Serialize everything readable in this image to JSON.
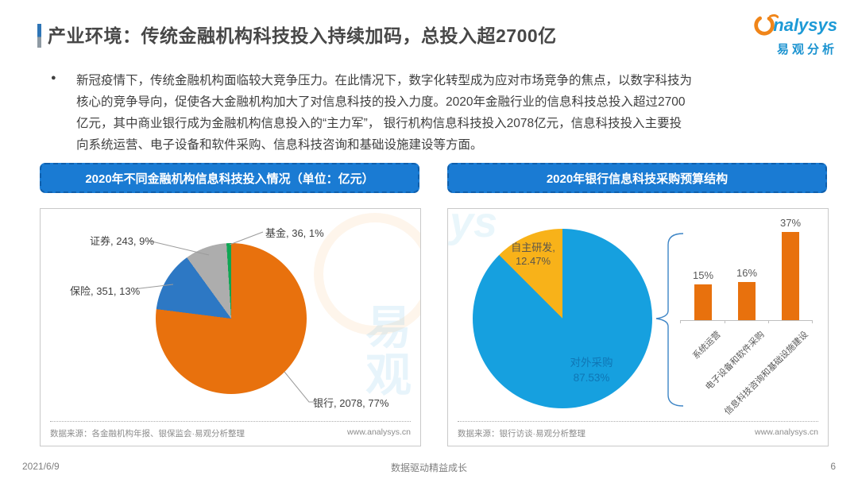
{
  "page": {
    "title": "产业环境：传统金融机构科技投入持续加码，总投入超2700亿",
    "bullet": "●",
    "bullet_lines": [
      "新冠疫情下，传统金融机构面临较大竞争压力。在此情况下，数字化转型成为应对市场竞争的焦点，以数字科技为",
      "核心的竞争导向，促使各大金融机构加大了对信息科技的投入力度。2020年金融行业的信息科技总投入超过2700",
      "亿元，其中商业银行成为金融机构信息投入的“主力军”， 银行机构信息科技投入2078亿元，信息科技投入主要投",
      "向系统运营、电子设备和软件采购、信息科技咨询和基础设施建设等方面。"
    ],
    "logo": {
      "brand": "nalysys",
      "brand_cn": "易观分析"
    },
    "watermark": {
      "left_cn": "易观",
      "right_script": "ys"
    },
    "footer": {
      "date": "2021/6/9",
      "slogan": "数据驱动精益成长",
      "page_number": "6"
    }
  },
  "panels": {
    "left": {
      "header": "2020年不同金融机构信息科技投入情况（单位：亿元）",
      "source": "数据来源：各金融机构年报、银保监会·易观分析整理",
      "site": "www.analysys.cn"
    },
    "right": {
      "header": "2020年银行信息科技采购预算结构",
      "source": "数据来源：银行访谈·易观分析整理",
      "site": "www.analysys.cn"
    }
  },
  "chart_data": [
    {
      "type": "pie",
      "title": "2020年不同金融机构信息科技投入情况（单位：亿元）",
      "unit": "亿元",
      "labels": [
        "银行",
        "保险",
        "证券",
        "基金"
      ],
      "values": [
        2078,
        351,
        243,
        36
      ],
      "percents": [
        77,
        13,
        9,
        1
      ],
      "colors": [
        "#e8710d",
        "#2d78c4",
        "#adadad",
        "#0ea653"
      ],
      "display_labels": [
        "银行, 2078, 77%",
        "保险, 351, 13%",
        "证券, 243, 9%",
        "基金, 36, 1%"
      ],
      "start_angle": "12点钟方向顺时针",
      "legend": "off"
    },
    {
      "type": "pie",
      "title": "2020年银行信息科技采购预算结构",
      "labels": [
        "对外采购",
        "自主研发"
      ],
      "percents": [
        87.53,
        12.47
      ],
      "colors": [
        "#16a0df",
        "#f8b219"
      ],
      "display": {
        "outer_label": "自主研发,",
        "outer_pct": "12.47%",
        "inner_label": "对外采购",
        "inner_pct": "87.53%"
      },
      "legend": "off"
    },
    {
      "type": "bar",
      "title": "对外采购预算结构",
      "categories": [
        "系统运营",
        "电子设备和软件采购",
        "信息科技咨询和基础设施建设"
      ],
      "values": [
        15,
        16,
        37
      ],
      "data_labels": [
        "15%",
        "16%",
        "37%"
      ],
      "unit": "%",
      "bar_color": "#e8710d",
      "ylim": [
        0,
        40
      ],
      "grid": "off",
      "axis": "x-only"
    }
  ]
}
